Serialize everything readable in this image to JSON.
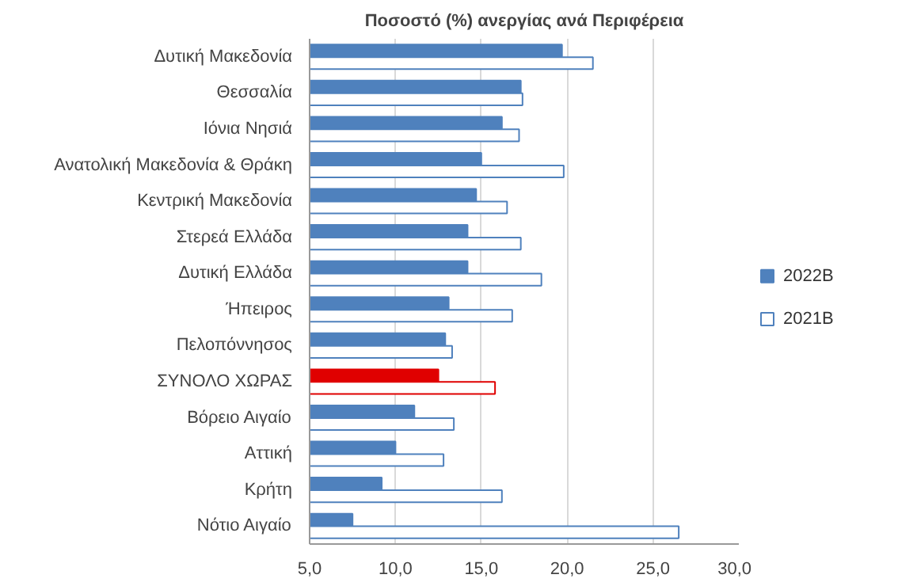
{
  "chart_data": {
    "type": "bar",
    "orientation": "horizontal",
    "title": "Ποσοστό (%) ανεργίας ανά Περιφέρεια",
    "categories": [
      "Δυτική Μακεδονία",
      "Θεσσαλία",
      "Ιόνια Νησιά",
      "Ανατολική Μακεδονία & Θράκη",
      "Κεντρική Μακεδονία",
      "Στερεά Ελλάδα",
      "Δυτική Ελλάδα",
      "Ήπειρος",
      "Πελοπόννησος",
      "ΣΥΝΟΛΟ ΧΩΡΑΣ",
      "Βόρειο Αιγαίο",
      "Αττική",
      "Κρήτη",
      "Νότιο Αιγαίο"
    ],
    "series": [
      {
        "name": "2022Β",
        "color": "#4f81bd",
        "colors": [
          "#4f81bd",
          "#4f81bd",
          "#4f81bd",
          "#4f81bd",
          "#4f81bd",
          "#4f81bd",
          "#4f81bd",
          "#4f81bd",
          "#4f81bd",
          "#e00000",
          "#4f81bd",
          "#4f81bd",
          "#4f81bd",
          "#4f81bd"
        ],
        "values": [
          19.7,
          17.3,
          16.2,
          15.0,
          14.7,
          14.2,
          14.2,
          13.1,
          12.9,
          12.5,
          11.1,
          10.0,
          9.2,
          7.5
        ]
      },
      {
        "name": "2021Β",
        "color": "#ffffff",
        "colors": [
          "#ffffff",
          "#ffffff",
          "#ffffff",
          "#ffffff",
          "#ffffff",
          "#ffffff",
          "#ffffff",
          "#ffffff",
          "#ffffff",
          "#ffffff",
          "#ffffff",
          "#ffffff",
          "#ffffff",
          "#ffffff"
        ],
        "values": [
          21.5,
          17.4,
          17.2,
          19.8,
          16.5,
          17.3,
          18.5,
          16.8,
          13.3,
          15.8,
          13.4,
          12.8,
          16.2,
          26.5
        ]
      }
    ],
    "xlim": [
      5,
      30
    ],
    "xticks": [
      {
        "value": 5,
        "label": "5,0"
      },
      {
        "value": 10,
        "label": "10,0"
      },
      {
        "value": 15,
        "label": "15,0"
      },
      {
        "value": 20,
        "label": "20,0"
      },
      {
        "value": 25,
        "label": "25,0"
      },
      {
        "value": 30,
        "label": "30,0"
      }
    ],
    "grid": "x",
    "legend": "right"
  }
}
